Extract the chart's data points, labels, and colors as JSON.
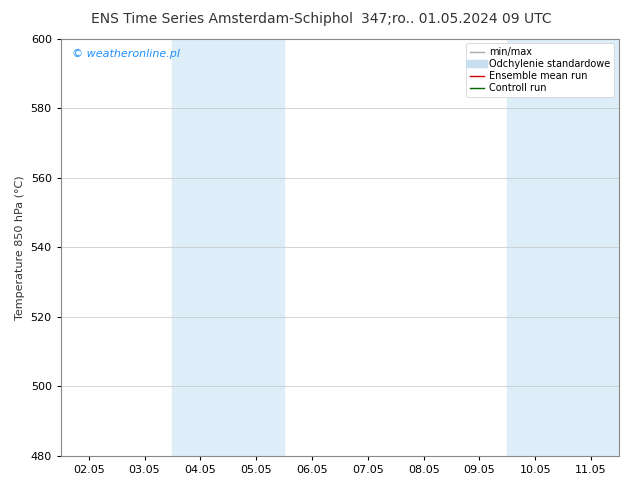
{
  "title_left": "ENS Time Series Amsterdam-Schiphol",
  "title_right": "347;ro.. 01.05.2024 09 UTC",
  "ylabel": "Temperature 850 hPa (°C)",
  "ylim": [
    480,
    600
  ],
  "yticks": [
    480,
    500,
    520,
    540,
    560,
    580,
    600
  ],
  "xtick_positions": [
    0,
    1,
    2,
    3,
    4,
    5,
    6,
    7,
    8,
    9
  ],
  "xtick_labels": [
    "02.05",
    "03.05",
    "04.05",
    "05.05",
    "06.05",
    "07.05",
    "08.05",
    "09.05",
    "10.05",
    "11.05"
  ],
  "shaded_regions": [
    {
      "xstart": 2.0,
      "xend": 4.0,
      "color": "#ddeef8"
    },
    {
      "xstart": 8.5,
      "xend": 10.0,
      "color": "#ddeef8"
    }
  ],
  "watermark_text": "© weatheronline.pl",
  "watermark_color": "#1e90ff",
  "legend_entries": [
    {
      "label": "min/max",
      "color": "#aaaaaa",
      "lw": 1.0,
      "linestyle": "-"
    },
    {
      "label": "Odchylenie standardowe",
      "color": "#c8dff0",
      "lw": 6,
      "linestyle": "-"
    },
    {
      "label": "Ensemble mean run",
      "color": "#cc0000",
      "lw": 1.0,
      "linestyle": "-"
    },
    {
      "label": "Controll run",
      "color": "#006600",
      "lw": 1.0,
      "linestyle": "-"
    }
  ],
  "background_color": "#ffffff",
  "grid_color": "#cccccc",
  "title_fontsize": 10,
  "axis_fontsize": 8,
  "tick_fontsize": 8
}
